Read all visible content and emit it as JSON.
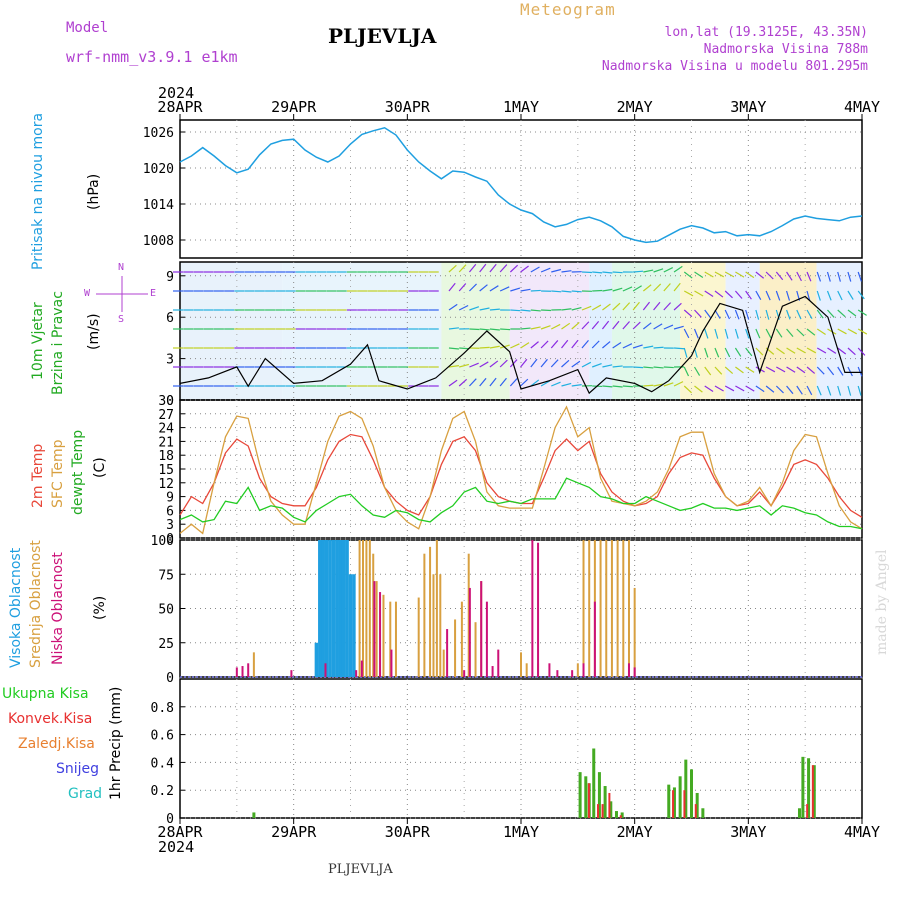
{
  "header": {
    "model_label": "Model",
    "model_name": "wrf-nmm_v3.9.1 e1km",
    "station": "PLJEVLJA",
    "product": "Meteogram",
    "coords": "lon,lat (19.3125E, 43.35N)",
    "elevation": "Nadmorska Visina 788m",
    "model_elevation": "Nadmorska Visina u modelu 801.295m",
    "year": "2024",
    "footer_station": "PLJEVLJA",
    "credit": "made by Angel"
  },
  "colors": {
    "pressure": "#1f9fe0",
    "t2m": "#e8483a",
    "sfc": "#d8a040",
    "dew": "#22cc22",
    "high_cloud": "#1f9fe0",
    "mid_cloud": "#d8a040",
    "low_cloud": "#cc1177",
    "precip_total": "#44aa22",
    "precip_conv": "#e83030",
    "wind_label": "#22aa22",
    "compass": "#b040d0"
  },
  "chart_data": [
    {
      "type": "line",
      "panel": "pressure",
      "ylabel_main": "Pritisak na nivou mora",
      "ylabel_unit": "(hPa)",
      "x_ticks": [
        "28APR",
        "29APR",
        "30APR",
        "1MAY",
        "2MAY",
        "3MAY",
        "4MAY"
      ],
      "ylim": [
        1005,
        1028
      ],
      "yticks": [
        1008,
        1014,
        1020,
        1026
      ],
      "grid": true,
      "x_days": [
        0,
        0.1,
        0.2,
        0.3,
        0.4,
        0.5,
        0.6,
        0.7,
        0.8,
        0.9,
        1.0,
        1.1,
        1.2,
        1.3,
        1.4,
        1.5,
        1.6,
        1.7,
        1.8,
        1.9,
        2.0,
        2.1,
        2.2,
        2.3,
        2.4,
        2.5,
        2.6,
        2.7,
        2.8,
        2.9,
        3.0,
        3.1,
        3.2,
        3.3,
        3.4,
        3.5,
        3.6,
        3.7,
        3.8,
        3.9,
        4.0,
        4.1,
        4.2,
        4.3,
        4.4,
        4.5,
        4.6,
        4.7,
        4.8,
        4.9,
        5.0,
        5.1,
        5.2,
        5.3,
        5.4,
        5.5,
        5.6,
        5.7,
        5.8,
        5.9,
        6.0
      ],
      "values": [
        1021.0,
        1022.0,
        1023.4,
        1022.0,
        1020.4,
        1019.2,
        1019.8,
        1022.2,
        1024.0,
        1024.6,
        1024.8,
        1023.0,
        1021.8,
        1021.0,
        1022.0,
        1024.0,
        1025.6,
        1026.2,
        1026.7,
        1025.5,
        1023.0,
        1021.0,
        1019.5,
        1018.2,
        1019.5,
        1019.3,
        1018.5,
        1017.8,
        1015.5,
        1014.0,
        1013.0,
        1012.4,
        1011.0,
        1010.2,
        1010.6,
        1011.4,
        1011.8,
        1011.2,
        1010.2,
        1008.6,
        1008.0,
        1007.6,
        1007.8,
        1008.8,
        1009.8,
        1010.4,
        1010.0,
        1009.2,
        1009.4,
        1008.7,
        1008.9,
        1008.7,
        1009.4,
        1010.4,
        1011.5,
        1012.0,
        1011.6,
        1011.4,
        1011.2,
        1011.8,
        1012.0
      ]
    },
    {
      "type": "line",
      "panel": "wind",
      "ylabel_main": "10m Vjetar",
      "ylabel_sub": "Brzina i Pravac",
      "ylabel_unit": "(m/s)",
      "compass": [
        "N",
        "W",
        "E",
        "S"
      ],
      "ylim": [
        0,
        10
      ],
      "yticks": [
        0,
        3,
        6,
        9
      ],
      "x_days": [
        0,
        0.25,
        0.5,
        0.6,
        0.75,
        1.0,
        1.25,
        1.5,
        1.65,
        1.75,
        2.0,
        2.25,
        2.5,
        2.7,
        2.9,
        3.0,
        3.25,
        3.5,
        3.6,
        3.75,
        4.0,
        4.15,
        4.3,
        4.5,
        4.6,
        4.75,
        4.95,
        5.1,
        5.3,
        5.5,
        5.7,
        5.85,
        6.0
      ],
      "values": [
        1.2,
        1.6,
        2.4,
        1.0,
        3.0,
        1.2,
        1.4,
        2.6,
        4.0,
        1.4,
        0.8,
        1.6,
        3.4,
        5.0,
        3.5,
        0.8,
        1.4,
        2.2,
        0.5,
        1.6,
        1.2,
        0.6,
        1.4,
        3.2,
        5.0,
        7.0,
        6.5,
        2.0,
        6.8,
        7.5,
        6.0,
        2.0,
        2.0
      ]
    },
    {
      "type": "line",
      "panel": "temperature",
      "ylabel_t2m": "2m Temp",
      "ylabel_sfc": "SFC Temp",
      "ylabel_dew": "dewpt Temp",
      "ylabel_unit": "(C)",
      "ylim": [
        0,
        30
      ],
      "yticks": [
        0,
        3,
        6,
        9,
        12,
        15,
        18,
        21,
        24,
        27,
        30
      ],
      "x_days": [
        0,
        0.1,
        0.2,
        0.3,
        0.4,
        0.5,
        0.6,
        0.7,
        0.8,
        0.9,
        1.0,
        1.1,
        1.2,
        1.3,
        1.4,
        1.5,
        1.6,
        1.7,
        1.8,
        1.9,
        2.0,
        2.1,
        2.2,
        2.3,
        2.4,
        2.5,
        2.6,
        2.7,
        2.8,
        2.9,
        3.0,
        3.1,
        3.2,
        3.3,
        3.4,
        3.5,
        3.6,
        3.7,
        3.8,
        3.9,
        4.0,
        4.1,
        4.2,
        4.3,
        4.4,
        4.5,
        4.6,
        4.7,
        4.8,
        4.9,
        5.0,
        5.1,
        5.2,
        5.3,
        5.4,
        5.5,
        5.6,
        5.7,
        5.8,
        5.9,
        6.0
      ],
      "series": [
        {
          "name": "2m Temp",
          "values": [
            5,
            9,
            7.5,
            12,
            18.5,
            21.5,
            20,
            13,
            9,
            7.5,
            7,
            7,
            11,
            17,
            21,
            22.5,
            22,
            17,
            11,
            8,
            6,
            5,
            9,
            16,
            21,
            22,
            19,
            12,
            9,
            8,
            7.5,
            7.5,
            13,
            19,
            21.5,
            19,
            21,
            14,
            10,
            8,
            7,
            7.5,
            9,
            14,
            17.5,
            18.5,
            18,
            13,
            9,
            7,
            7.5,
            10,
            7,
            11,
            16,
            17,
            16,
            13,
            9,
            6,
            4.5
          ]
        },
        {
          "name": "SFC Temp",
          "values": [
            1,
            3,
            1,
            12,
            22,
            26.5,
            26,
            16,
            8,
            5,
            3,
            3,
            12,
            21,
            26.5,
            27.5,
            26,
            20,
            11,
            6,
            3.5,
            2,
            9,
            19,
            26,
            27.5,
            21,
            10,
            7,
            6.5,
            6.5,
            6.5,
            15,
            24,
            28.5,
            22,
            24,
            13,
            8,
            7.5,
            7,
            8,
            10,
            15,
            22,
            23,
            23,
            14,
            9,
            7,
            8,
            11,
            7,
            12,
            19,
            22.5,
            22,
            14,
            7,
            3.5,
            2
          ]
        },
        {
          "name": "dewpt Temp",
          "values": [
            4,
            5,
            3.5,
            4,
            8,
            7.5,
            11,
            6,
            7,
            6.5,
            4.5,
            3.5,
            6,
            7.5,
            9,
            9.5,
            7,
            5,
            4.5,
            6,
            5.5,
            4,
            3.5,
            5.5,
            7,
            10,
            11,
            8,
            7.5,
            8,
            7.5,
            8.5,
            8.5,
            8.5,
            13,
            12,
            11,
            9,
            8.5,
            7.5,
            7.5,
            9,
            8,
            7,
            6,
            6.5,
            7.5,
            6.5,
            6.5,
            6,
            6.5,
            7,
            5,
            7,
            6.5,
            5.5,
            5,
            3.5,
            2.5,
            2.5,
            2
          ]
        }
      ]
    },
    {
      "type": "bar",
      "panel": "clouds",
      "ylabel_high": "Visoka Oblacnost",
      "ylabel_mid": "Srednja Oblacnost",
      "ylabel_low": "Niska Oblacnost",
      "ylabel_unit": "(%)",
      "ylim": [
        0,
        100
      ],
      "yticks": [
        0,
        25,
        50,
        75,
        100
      ],
      "series": [
        {
          "name": "Visoka Oblacnost",
          "x_days": [
            1.2,
            1.23,
            1.26,
            1.29,
            1.32,
            1.35,
            1.38,
            1.41,
            1.44,
            1.47,
            1.5,
            1.53
          ],
          "values": [
            25,
            100,
            100,
            100,
            100,
            100,
            100,
            100,
            100,
            100,
            75,
            75
          ]
        },
        {
          "name": "Srednja Oblacnost",
          "x_days": [
            0.65,
            1.58,
            1.61,
            1.64,
            1.67,
            1.7,
            1.73,
            1.79,
            1.85,
            1.9,
            2.1,
            2.15,
            2.2,
            2.23,
            2.26,
            2.29,
            2.32,
            2.42,
            2.48,
            2.54,
            2.6,
            2.65,
            3.0,
            3.05,
            3.15,
            3.5,
            3.55,
            3.6,
            3.65,
            3.7,
            3.75,
            3.8,
            3.85,
            3.9,
            3.95,
            4.0
          ],
          "values": [
            18,
            100,
            100,
            100,
            100,
            90,
            70,
            60,
            55,
            55,
            58,
            90,
            95,
            75,
            100,
            75,
            20,
            42,
            55,
            90,
            40,
            70,
            18,
            10,
            10,
            10,
            100,
            100,
            100,
            100,
            100,
            100,
            100,
            100,
            100,
            65
          ]
        },
        {
          "name": "Niska Oblacnost",
          "x_days": [
            0.5,
            0.55,
            0.6,
            0.98,
            1.28,
            1.55,
            1.6,
            1.71,
            1.76,
            1.86,
            2.35,
            2.5,
            2.55,
            2.65,
            2.7,
            2.75,
            2.8,
            3.1,
            3.15,
            3.25,
            3.32,
            3.45,
            3.55,
            3.65,
            3.95,
            4.0
          ],
          "values": [
            7,
            8,
            10,
            5,
            10,
            5,
            12,
            70,
            62,
            20,
            35,
            5,
            65,
            70,
            55,
            8,
            20,
            100,
            98,
            10,
            5,
            5,
            10,
            55,
            10,
            7
          ]
        }
      ]
    },
    {
      "type": "bar",
      "panel": "precipitation",
      "legend": [
        "Ukupna Kisa",
        "Konvek.Kisa",
        "Zaledj.Kisa",
        "Snijeg",
        "Grad"
      ],
      "ylabel_unit": "1hr Precip (mm)",
      "ylim": [
        0,
        1.0
      ],
      "yticks": [
        0,
        0.2,
        0.4,
        0.6,
        0.8
      ],
      "series": [
        {
          "name": "Ukupna Kisa",
          "x_days": [
            0.65,
            3.52,
            3.57,
            3.6,
            3.64,
            3.69,
            3.74,
            3.79,
            3.84,
            3.89,
            4.3,
            4.35,
            4.4,
            4.45,
            4.5,
            4.55,
            4.6,
            5.45,
            5.48,
            5.53,
            5.58
          ],
          "values": [
            0.04,
            0.33,
            0.3,
            0.25,
            0.5,
            0.33,
            0.23,
            0.12,
            0.05,
            0.04,
            0.24,
            0.22,
            0.3,
            0.42,
            0.35,
            0.18,
            0.07,
            0.07,
            0.44,
            0.43,
            0.38
          ]
        },
        {
          "name": "Konvek.Kisa",
          "x_days": [
            3.58,
            3.66,
            3.7,
            3.76,
            3.86,
            4.32,
            4.42,
            4.52,
            5.5,
            5.55
          ],
          "values": [
            0.25,
            0.1,
            0.1,
            0.18,
            0.02,
            0.2,
            0.2,
            0.1,
            0.1,
            0.38
          ]
        }
      ]
    }
  ]
}
